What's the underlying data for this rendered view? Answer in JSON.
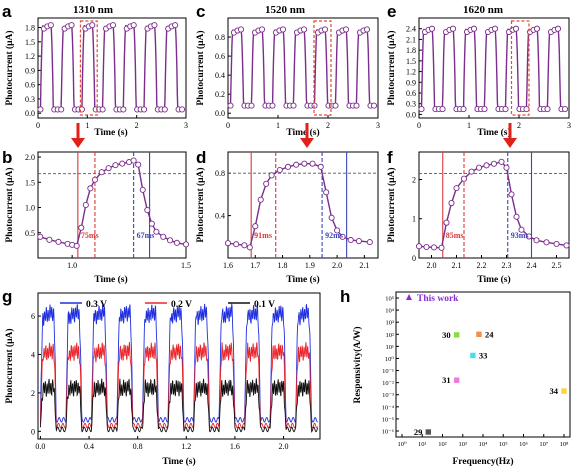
{
  "panel_labels": {
    "a": "a",
    "b": "b",
    "c": "c",
    "d": "d",
    "e": "e",
    "f": "f",
    "g": "g",
    "h": "h"
  },
  "colors": {
    "curve": "#7b2e8c",
    "marker_fill": "#ffffff",
    "red_line": "#d83a3a",
    "blue_line": "#3a46b8",
    "arrow": "#e2201a",
    "box": "#e04a3a",
    "g_03": "#1f2fe0",
    "g_02": "#e8262b",
    "g_01": "#111111"
  },
  "chart_data": [
    {
      "id": "a",
      "type": "line",
      "title": "1310 nm",
      "xlabel": "Time (s)",
      "ylabel": "Photocurrent (μA)",
      "xlim": [
        0,
        3
      ],
      "ylim": [
        -0.1,
        2.0
      ],
      "xticks": [
        "0",
        "1",
        "2",
        "3"
      ],
      "yticks": [
        "0.0",
        "0.3",
        "0.6",
        "0.9",
        "1.2",
        "1.5",
        "1.8"
      ],
      "period": 0.42,
      "low": 0.08,
      "high": 1.85,
      "highlight": [
        0.86,
        1.2
      ]
    },
    {
      "id": "c",
      "type": "line",
      "title": "1520 nm",
      "xlabel": "Time (s)",
      "ylabel": "Photocurrent (μA)",
      "xlim": [
        0,
        3
      ],
      "ylim": [
        -0.05,
        1.0
      ],
      "xticks": [
        "0",
        "1",
        "2",
        "3"
      ],
      "yticks": [
        "0.0",
        "0.2",
        "0.4",
        "0.6",
        "0.8"
      ],
      "period": 0.42,
      "low": 0.08,
      "high": 0.88,
      "highlight": [
        1.72,
        2.06
      ]
    },
    {
      "id": "e",
      "type": "line",
      "title": "1620 nm",
      "xlabel": "Time (s)",
      "ylabel": "Photocurrent (μA)",
      "xlim": [
        0,
        3
      ],
      "ylim": [
        -0.1,
        2.7
      ],
      "xticks": [
        "0",
        "1",
        "2",
        "3"
      ],
      "yticks": [
        "0.0",
        "0.3",
        "0.6",
        "0.9",
        "1.2",
        "1.5",
        "1.8",
        "2.1",
        "2.4"
      ],
      "period": 0.42,
      "low": 0.15,
      "high": 2.4,
      "highlight": [
        1.85,
        2.2
      ]
    },
    {
      "id": "b",
      "type": "line",
      "xlabel": "Time (s)",
      "ylabel": "Photocurrent (μA)",
      "xlim": [
        0.85,
        1.5
      ],
      "ylim": [
        0.0,
        2.1
      ],
      "xticks": [
        "1.0",
        "1.5"
      ],
      "xtick_values": [
        1.0,
        1.5
      ],
      "yticks": [
        "0.5",
        "1.0",
        "1.5",
        "2.0"
      ],
      "points": [
        [
          0.86,
          0.42
        ],
        [
          0.9,
          0.36
        ],
        [
          0.94,
          0.32
        ],
        [
          0.98,
          0.28
        ],
        [
          1.0,
          0.26
        ],
        [
          1.02,
          0.24
        ],
        [
          1.04,
          0.6
        ],
        [
          1.06,
          1.05
        ],
        [
          1.08,
          1.38
        ],
        [
          1.1,
          1.55
        ],
        [
          1.13,
          1.7
        ],
        [
          1.16,
          1.78
        ],
        [
          1.19,
          1.84
        ],
        [
          1.22,
          1.87
        ],
        [
          1.25,
          1.9
        ],
        [
          1.27,
          1.93
        ],
        [
          1.29,
          1.85
        ],
        [
          1.31,
          1.35
        ],
        [
          1.33,
          0.95
        ],
        [
          1.35,
          0.68
        ],
        [
          1.37,
          0.52
        ],
        [
          1.4,
          0.42
        ],
        [
          1.43,
          0.35
        ],
        [
          1.46,
          0.3
        ],
        [
          1.5,
          0.27
        ]
      ],
      "hline": 1.67,
      "vlines": [
        {
          "x": 1.025,
          "c": "red",
          "dash": false
        },
        {
          "x": 1.1,
          "c": "red",
          "dash": true
        },
        {
          "x": 1.27,
          "c": "blue",
          "dash": true
        },
        {
          "x": 1.34,
          "c": "blue",
          "dash": false
        }
      ],
      "rise_label": "75ms",
      "fall_label": "67ms"
    },
    {
      "id": "d",
      "type": "line",
      "xlabel": "Time (s)",
      "ylabel": "Photocurrent (μA)",
      "xlim": [
        1.6,
        2.15
      ],
      "ylim": [
        0.0,
        1.0
      ],
      "xticks": [
        "1.6",
        "1.7",
        "1.8",
        "1.9",
        "2.0",
        "2.1"
      ],
      "xtick_values": [
        1.6,
        1.7,
        1.8,
        1.9,
        2.0,
        2.1
      ],
      "yticks": [
        "0.4",
        "0.8"
      ],
      "points": [
        [
          1.6,
          0.14
        ],
        [
          1.63,
          0.13
        ],
        [
          1.66,
          0.12
        ],
        [
          1.68,
          0.1
        ],
        [
          1.7,
          0.3
        ],
        [
          1.72,
          0.55
        ],
        [
          1.74,
          0.7
        ],
        [
          1.76,
          0.78
        ],
        [
          1.79,
          0.83
        ],
        [
          1.82,
          0.86
        ],
        [
          1.85,
          0.88
        ],
        [
          1.88,
          0.89
        ],
        [
          1.91,
          0.89
        ],
        [
          1.94,
          0.86
        ],
        [
          1.96,
          0.62
        ],
        [
          1.98,
          0.38
        ],
        [
          2.0,
          0.26
        ],
        [
          2.02,
          0.2
        ],
        [
          2.05,
          0.17
        ],
        [
          2.08,
          0.16
        ],
        [
          2.12,
          0.15
        ]
      ],
      "hline": 0.8,
      "vlines": [
        {
          "x": 1.685,
          "c": "red",
          "dash": false
        },
        {
          "x": 1.775,
          "c": "red",
          "dash": true
        },
        {
          "x": 1.945,
          "c": "blue",
          "dash": true
        },
        {
          "x": 2.035,
          "c": "blue",
          "dash": false
        }
      ],
      "rise_label": "91ms",
      "fall_label": "92ms"
    },
    {
      "id": "f",
      "type": "line",
      "xlabel": "Time (s)",
      "ylabel": "Photocurrent (μA)",
      "xlim": [
        1.95,
        2.55
      ],
      "ylim": [
        0.0,
        2.7
      ],
      "xticks": [
        "2.0",
        "2.1",
        "2.2",
        "2.3",
        "2.4",
        "2.5"
      ],
      "xtick_values": [
        2.0,
        2.1,
        2.2,
        2.3,
        2.4,
        2.5
      ],
      "yticks": [
        "0",
        "1",
        "2"
      ],
      "points": [
        [
          1.95,
          0.3
        ],
        [
          1.98,
          0.28
        ],
        [
          2.01,
          0.27
        ],
        [
          2.04,
          0.26
        ],
        [
          2.06,
          0.9
        ],
        [
          2.08,
          1.4
        ],
        [
          2.1,
          1.78
        ],
        [
          2.13,
          2.02
        ],
        [
          2.16,
          2.2
        ],
        [
          2.19,
          2.3
        ],
        [
          2.22,
          2.36
        ],
        [
          2.25,
          2.4
        ],
        [
          2.28,
          2.45
        ],
        [
          2.3,
          2.3
        ],
        [
          2.32,
          1.62
        ],
        [
          2.34,
          1.05
        ],
        [
          2.36,
          0.72
        ],
        [
          2.39,
          0.55
        ],
        [
          2.42,
          0.45
        ],
        [
          2.46,
          0.4
        ],
        [
          2.5,
          0.36
        ],
        [
          2.54,
          0.32
        ]
      ],
      "hline": 2.15,
      "vlines": [
        {
          "x": 2.045,
          "c": "red",
          "dash": false
        },
        {
          "x": 2.13,
          "c": "red",
          "dash": true
        },
        {
          "x": 2.305,
          "c": "blue",
          "dash": true
        },
        {
          "x": 2.4,
          "c": "blue",
          "dash": false
        }
      ],
      "rise_label": "85ms",
      "fall_label": "93ms"
    },
    {
      "id": "g",
      "type": "line",
      "xlabel": "Time (s)",
      "ylabel": "Photocurrent (μA)",
      "xlim": [
        -0.02,
        2.3
      ],
      "ylim": [
        -0.4,
        7.2
      ],
      "xticks": [
        "0.0",
        "0.4",
        "0.8",
        "1.2",
        "1.6",
        "2.0"
      ],
      "xtick_values": [
        0,
        0.4,
        0.8,
        1.2,
        1.6,
        2.0
      ],
      "yticks": [
        "0",
        "2",
        "4",
        "6"
      ],
      "period": 0.21,
      "series": [
        {
          "name": "0.3 V",
          "color": "#1f2fe0",
          "low": 0.6,
          "high": 6.2
        },
        {
          "name": "0.2 V",
          "color": "#e8262b",
          "low": 0.3,
          "high": 4.2
        },
        {
          "name": "0.1 V",
          "color": "#111111",
          "low": 0.1,
          "high": 2.3
        }
      ]
    },
    {
      "id": "h",
      "type": "scatter",
      "xlabel": "Frequency(Hz)",
      "ylabel": "Responsivity(A/W)",
      "log": true,
      "xlim_exp": [
        0,
        8
      ],
      "ylim_exp": [
        -6,
        5
      ],
      "xtick_labels": [
        "10⁰",
        "10¹",
        "10²",
        "10³",
        "10⁴",
        "10⁵",
        "10⁶",
        "10⁷",
        "10⁸"
      ],
      "ytick_labels": [
        "10⁵",
        "10⁴",
        "10³",
        "10²",
        "10¹",
        "10⁰",
        "10⁻¹",
        "10⁻²",
        "10⁻³",
        "10⁻⁴",
        "10⁻⁵",
        "10⁻⁶"
      ],
      "legend": "This work",
      "points": [
        {
          "label": "29",
          "x": 1.3,
          "y": -6.3,
          "color": "#555555"
        },
        {
          "label": "30",
          "x": 2.7,
          "y": 1.95,
          "color": "#88dd44"
        },
        {
          "label": "24",
          "x": 3.8,
          "y": 2.0,
          "color": "#f0904a"
        },
        {
          "label": "33",
          "x": 3.5,
          "y": 0.25,
          "color": "#44e0e8"
        },
        {
          "label": "31",
          "x": 2.7,
          "y": -1.8,
          "color": "#f07ad8"
        },
        {
          "label": "34",
          "x": 8.0,
          "y": -2.7,
          "color": "#ffd23a"
        }
      ]
    }
  ]
}
